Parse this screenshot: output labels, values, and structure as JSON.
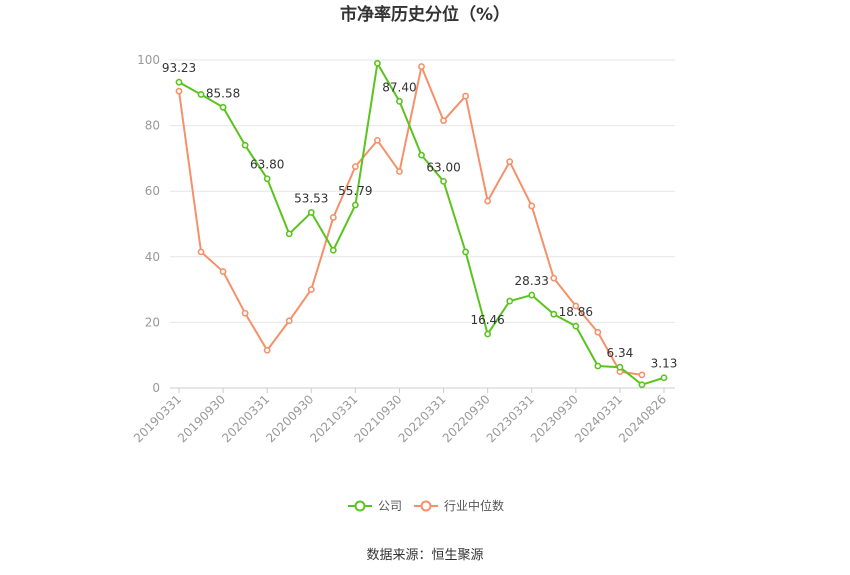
{
  "chart_data": {
    "type": "line",
    "title": "市净率历史分位（%）",
    "xlabel": "",
    "ylabel": "",
    "ylim": [
      0,
      100
    ],
    "yticks": [
      0,
      20,
      40,
      60,
      80,
      100
    ],
    "grid": true,
    "legend_position": "bottom",
    "x": [
      "20190331",
      "20190630",
      "20190930",
      "20191231",
      "20200331",
      "20200630",
      "20200930",
      "20201231",
      "20210331",
      "20210630",
      "20210930",
      "20211231",
      "20220331",
      "20220630",
      "20220930",
      "20221231",
      "20230331",
      "20230630",
      "20230930",
      "20231231",
      "20240331",
      "20240630",
      "20240826"
    ],
    "x_tick_labels": [
      "20190331",
      "20190930",
      "20200331",
      "20200930",
      "20210331",
      "20210930",
      "20220331",
      "20220930",
      "20230331",
      "20230930",
      "20240331",
      "20240826"
    ],
    "series": [
      {
        "name": "公司",
        "color": "#5ac41e",
        "values": [
          93.23,
          89.5,
          85.58,
          74.0,
          63.8,
          47.0,
          53.53,
          42.0,
          55.79,
          99.0,
          87.4,
          71.0,
          63.0,
          41.5,
          16.46,
          26.5,
          28.33,
          22.5,
          18.86,
          6.7,
          6.34,
          1.0,
          3.13
        ],
        "labels": [
          "93.23",
          "",
          "85.58",
          "",
          "63.80",
          "",
          "53.53",
          "",
          "55.79",
          "",
          "87.40",
          "",
          "63.00",
          "",
          "16.46",
          "",
          "28.33",
          "",
          "18.86",
          "",
          "6.34",
          "",
          "3.13"
        ]
      },
      {
        "name": "行业中位数",
        "color": "#f5916a",
        "values": [
          90.5,
          41.5,
          35.5,
          22.8,
          11.5,
          20.5,
          30.0,
          52.0,
          67.5,
          75.5,
          66.0,
          98.0,
          81.5,
          89.0,
          57.0,
          69.0,
          55.5,
          33.5,
          25.0,
          17.0,
          5.0,
          4.0,
          null
        ]
      }
    ]
  },
  "footer": {
    "source": "数据来源：恒生聚源"
  }
}
